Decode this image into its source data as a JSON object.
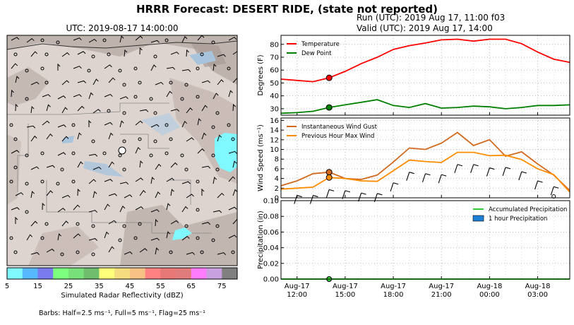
{
  "header": {
    "title": "HRRR Forecast: DESERT RIDE, (state not reported)",
    "run": "Run (UTC): 2019 Aug 17, 11:00 f03",
    "valid": "Valid (UTC): 2019 Aug 17, 14:00"
  },
  "map": {
    "title": "UTC: 2019-08-17 14:00:00",
    "colorbar": {
      "label": "Simulated Radar Reflectivity (dBZ)",
      "ticks": [
        "5",
        "15",
        "25",
        "35",
        "45",
        "55",
        "65",
        "75"
      ],
      "colors": [
        "#7ff8ff",
        "#58b8ff",
        "#7b7bf0",
        "#7cff7c",
        "#78e078",
        "#6ebe6e",
        "#ffff7c",
        "#f5dc7e",
        "#f8c286",
        "#ff8282",
        "#e87878",
        "#e07c7c",
        "#ff7cff",
        "#c8a0e0",
        "#808080"
      ]
    },
    "barbs_note": "Barbs: Half=2.5 ms⁻¹, Full=5 ms⁻¹, Flag=25 ms⁻¹"
  },
  "x_ticks": [
    {
      "hour": 12,
      "l1": "Aug-17",
      "l2": "12:00"
    },
    {
      "hour": 15,
      "l1": "Aug-17",
      "l2": "15:00"
    },
    {
      "hour": 18,
      "l1": "Aug-17",
      "l2": "18:00"
    },
    {
      "hour": 21,
      "l1": "Aug-17",
      "l2": "21:00"
    },
    {
      "hour": 24,
      "l1": "Aug-18",
      "l2": "00:00"
    },
    {
      "hour": 27,
      "l1": "Aug-18",
      "l2": "03:00"
    }
  ],
  "chart_data": [
    {
      "type": "line",
      "ylabel": "Degrees (F)",
      "xlim": [
        11,
        29
      ],
      "ylim": [
        25,
        87
      ],
      "yticks": [
        30,
        40,
        50,
        60,
        70,
        80
      ],
      "grid": true,
      "legend": "top-left",
      "x": [
        11,
        12,
        13,
        14,
        15,
        16,
        17,
        18,
        19,
        20,
        21,
        22,
        23,
        24,
        25,
        26,
        27,
        28,
        29
      ],
      "series": [
        {
          "name": "Temperature",
          "color": "#ff0000",
          "values": [
            53,
            52,
            51,
            54,
            59,
            65,
            70,
            76,
            79,
            81,
            83.5,
            84,
            82.5,
            84,
            84,
            80.5,
            74,
            68.5,
            66
          ]
        },
        {
          "name": "Dew Point",
          "color": "#008000",
          "values": [
            26.5,
            27,
            28,
            31,
            33,
            35,
            37,
            32.5,
            31,
            34,
            30.5,
            31,
            32,
            31.5,
            30,
            31,
            32.5,
            32.5,
            33
          ]
        }
      ],
      "marker": {
        "x": 14
      }
    },
    {
      "type": "line",
      "ylabel": "Wind Speed (ms⁻¹)",
      "xlim": [
        11,
        29
      ],
      "ylim": [
        0,
        16.5
      ],
      "yticks": [
        0,
        2,
        4,
        6,
        8,
        10,
        12,
        14,
        16
      ],
      "grid": true,
      "legend": "top-left",
      "x": [
        11,
        12,
        13,
        14,
        15,
        16,
        17,
        18,
        19,
        20,
        21,
        22,
        23,
        24,
        25,
        26,
        27,
        28,
        29
      ],
      "series": [
        {
          "name": "Instantaneous Wind Gust",
          "color": "#d2691e",
          "values": [
            2.5,
            3.5,
            5,
            5.3,
            4,
            3.8,
            4.7,
            7.4,
            10.3,
            10,
            11.3,
            13.5,
            10.8,
            12,
            8.6,
            9.5,
            7,
            4.7,
            1.5
          ]
        },
        {
          "name": "Previous Hour Max Wind",
          "color": "#ff8c00",
          "values": [
            1.8,
            2,
            2.2,
            4.2,
            4,
            3.5,
            3.4,
            5.6,
            7.8,
            7.5,
            7.3,
            9.4,
            9.4,
            8.7,
            8.8,
            7.9,
            6,
            4.8,
            1.2
          ]
        }
      ],
      "marker": {
        "x": 14
      }
    },
    {
      "type": "bar",
      "ylabel": "Precipitation (in)",
      "xlim": [
        11,
        29
      ],
      "ylim": [
        0,
        0.1
      ],
      "yticks": [
        0.0,
        0.02,
        0.04,
        0.06,
        0.08,
        0.1
      ],
      "ytick_labels": [
        "0.00",
        "0.02",
        "0.04",
        "0.06",
        "0.08",
        "0.10"
      ],
      "grid": true,
      "legend": "top-right",
      "x": [
        11,
        12,
        13,
        14,
        15,
        16,
        17,
        18,
        19,
        20,
        21,
        22,
        23,
        24,
        25,
        26,
        27,
        28,
        29
      ],
      "series": [
        {
          "name": "Accumulated Precipitation",
          "color": "#32cd32",
          "values": [
            0,
            0,
            0,
            0,
            0,
            0,
            0,
            0,
            0,
            0,
            0,
            0,
            0,
            0,
            0,
            0,
            0,
            0,
            0
          ]
        },
        {
          "name": "1 hour Precipitation",
          "color": "#1e7fd6",
          "values": [
            0,
            0,
            0,
            0,
            0,
            0,
            0,
            0,
            0,
            0,
            0,
            0,
            0,
            0,
            0,
            0,
            0,
            0,
            0
          ]
        }
      ],
      "marker": {
        "x": 14
      }
    }
  ]
}
